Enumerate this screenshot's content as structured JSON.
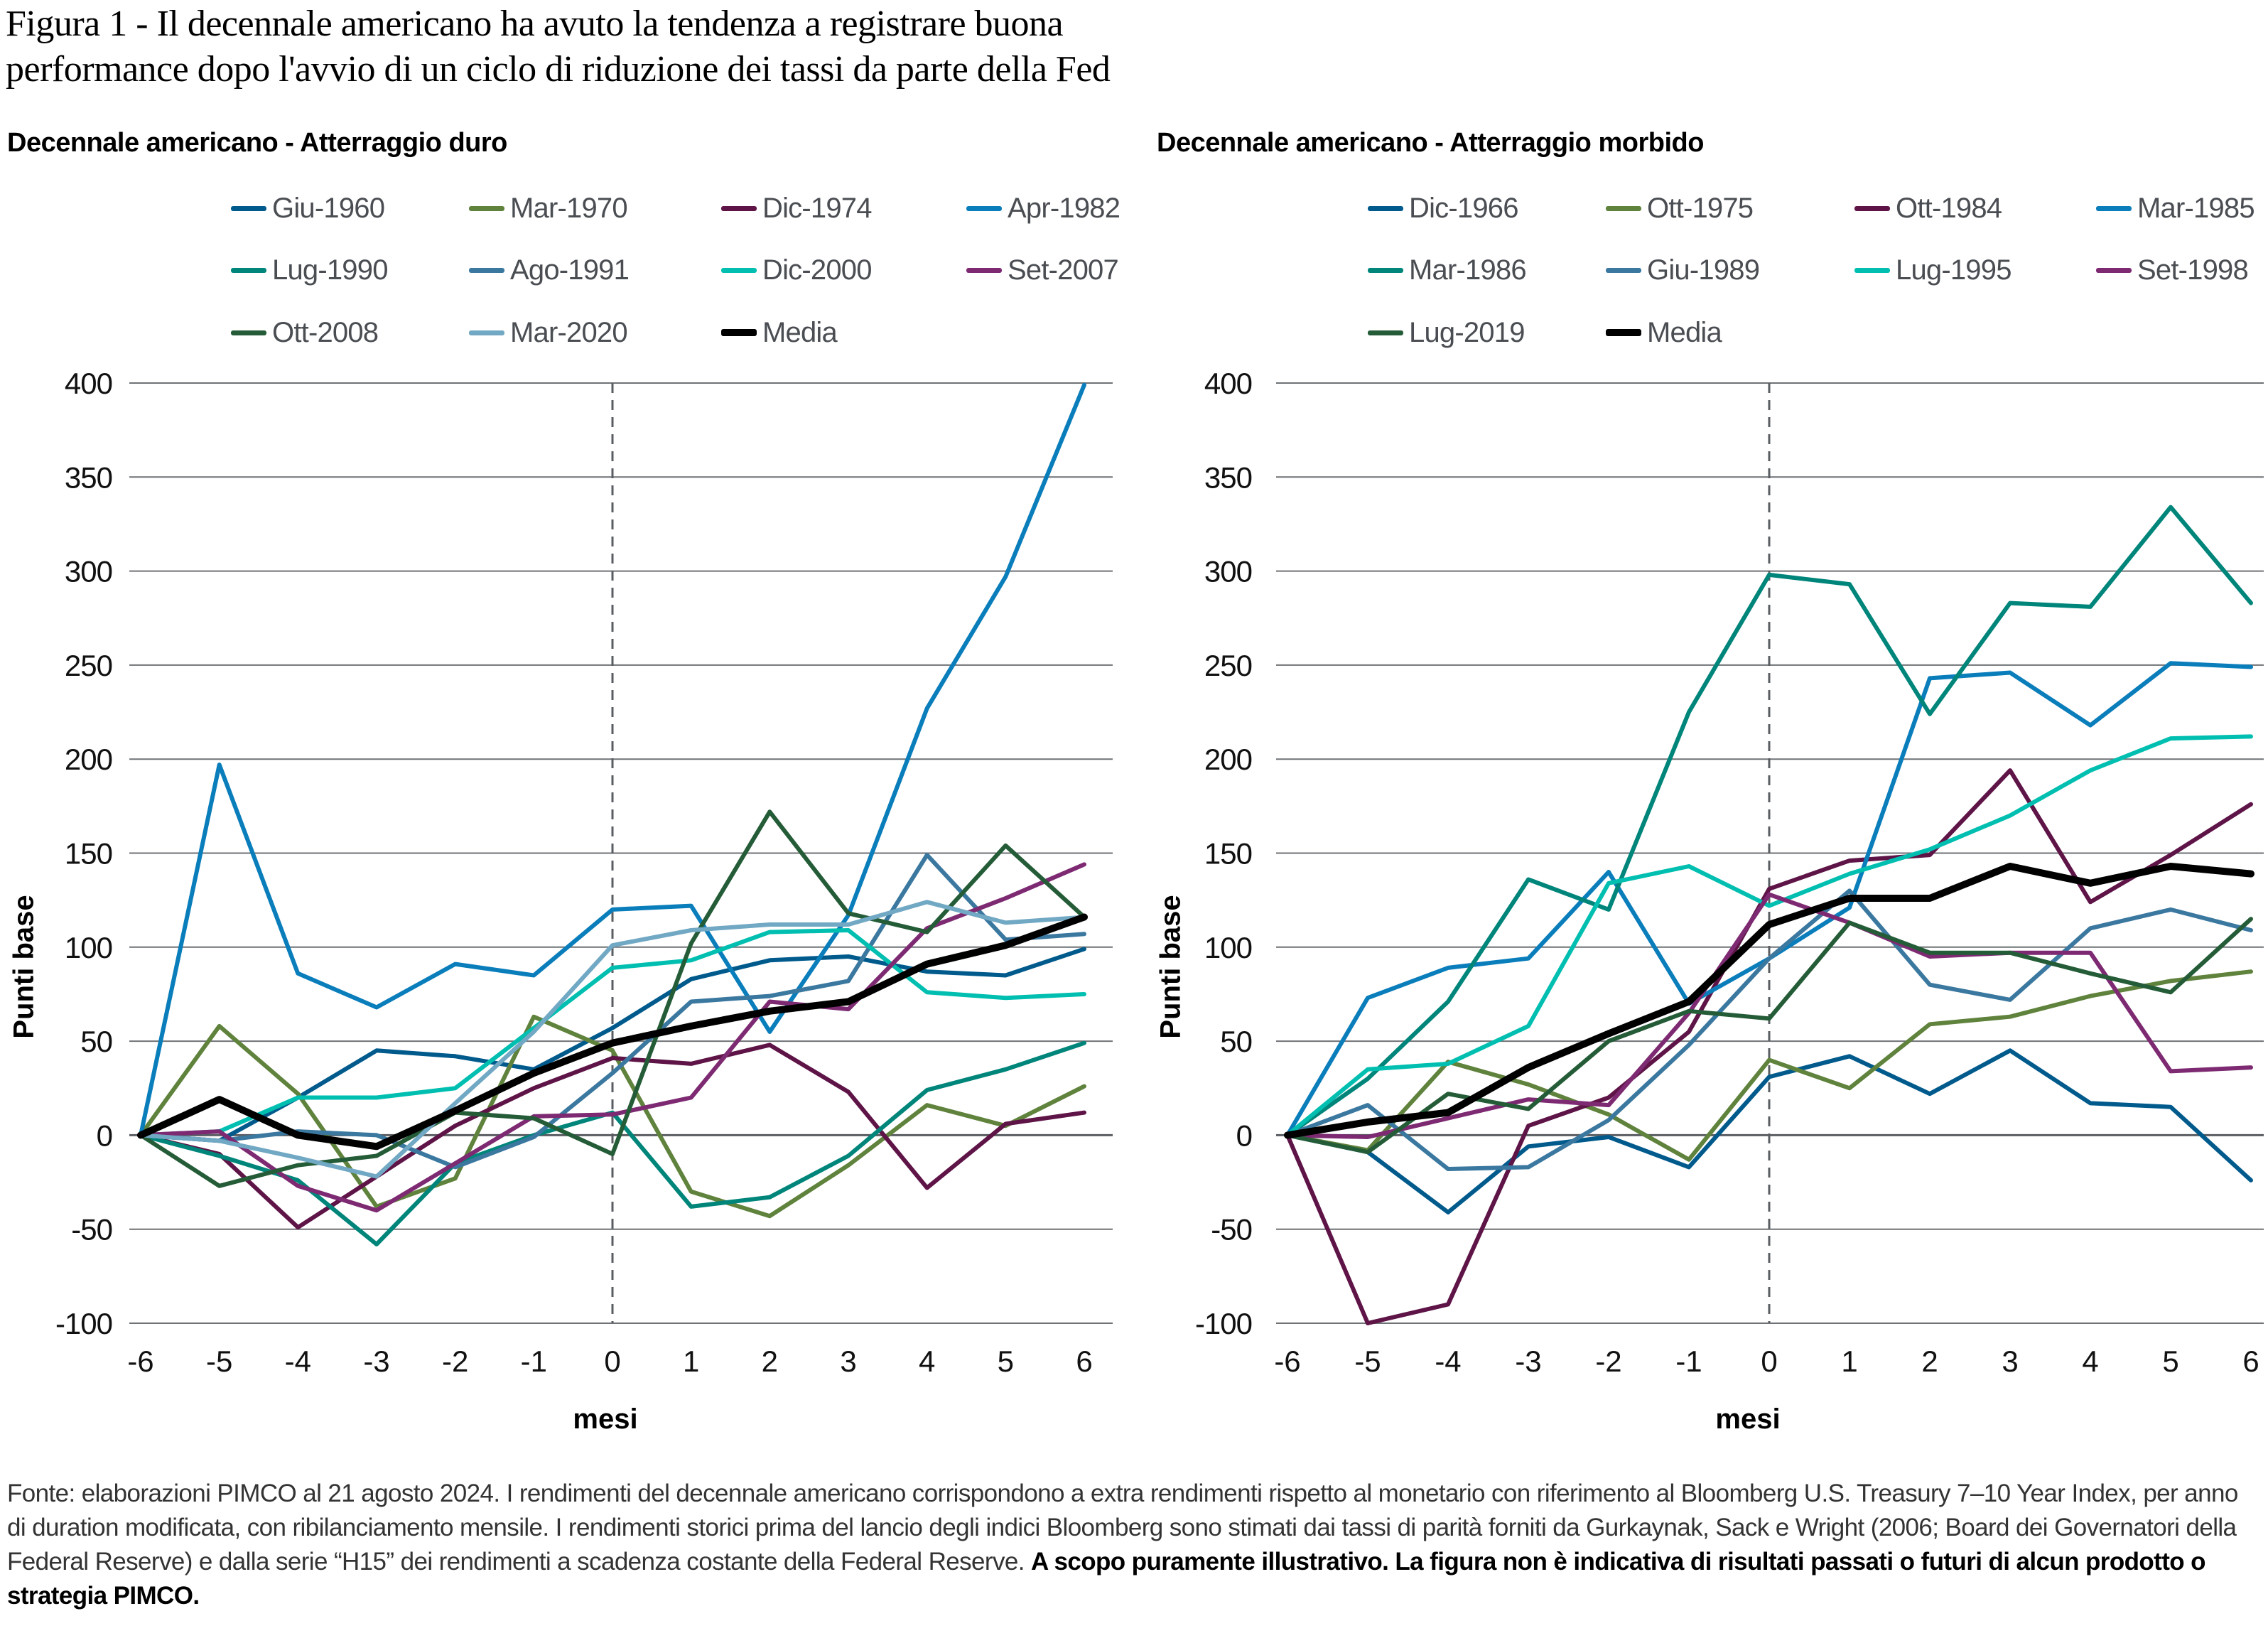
{
  "title_line1": "Figura 1 - Il decennale americano ha avuto la tendenza a registrare buona",
  "title_line2": "performance dopo l'avvio di un ciclo di riduzione dei tassi da parte della Fed",
  "footer": {
    "normal": "Fonte: elaborazioni PIMCO al 21 agosto 2024. I rendimenti del decennale americano corrispondono a extra rendimenti rispetto al monetario con riferimento al Bloomberg U.S. Treasury 7–10 Year Index, per anno di duration modificata, con ribilanciamento mensile. I rendimenti storici prima del lancio degli indici Bloomberg sono stimati dai tassi di parità forniti da Gurkaynak, Sack e Wright (2006; Board dei Governatori della Federal Reserve) e dalla serie “H15” dei rendimenti a scadenza costante della Federal Reserve.",
    "bold": "A scopo puramente illustrativo. La figura non è indicativa di risultati passati o futuri di alcun prodotto o strategia PIMCO."
  },
  "chart_data": [
    {
      "type": "line",
      "title": "Decennale americano - Atterraggio duro",
      "xlabel": "mesi",
      "ylabel": "Punti base",
      "x": [
        -6,
        -5,
        -4,
        -3,
        -2,
        -1,
        0,
        1,
        2,
        3,
        4,
        5,
        6
      ],
      "x_tick_labels": [
        "-6",
        "-5",
        "-4",
        "-3",
        "-2",
        "-1",
        "0",
        "1",
        "2",
        "3",
        "4",
        "5",
        "6"
      ],
      "ylim": [
        -100,
        400
      ],
      "y_ticks": [
        400,
        350,
        300,
        250,
        200,
        150,
        100,
        50,
        0,
        -50,
        -100
      ],
      "y_tick_labels": [
        "400",
        "350",
        "300",
        "250",
        "200",
        "150",
        "100",
        "50",
        "0",
        "-50",
        "-100"
      ],
      "grid": true,
      "vertical_reference_x": 0,
      "legend_position": "top",
      "series": [
        {
          "name": "Giu-1960",
          "color": "#005a8c",
          "width": 3,
          "values": [
            0,
            -3,
            20,
            45,
            42,
            35,
            57,
            83,
            93,
            95,
            87,
            85,
            99
          ]
        },
        {
          "name": "Mar-1970",
          "color": "#5f823c",
          "width": 3,
          "values": [
            0,
            58,
            22,
            -38,
            -23,
            63,
            45,
            -30,
            -43,
            -16,
            16,
            5,
            26
          ]
        },
        {
          "name": "Dic-1974",
          "color": "#5e1447",
          "width": 3,
          "values": [
            0,
            -10,
            -49,
            -22,
            5,
            25,
            41,
            38,
            48,
            23,
            -28,
            6,
            12
          ]
        },
        {
          "name": "Apr-1982",
          "color": "#0a7dbb",
          "width": 3,
          "values": [
            0,
            197,
            86,
            68,
            91,
            85,
            120,
            122,
            55,
            117,
            227,
            297,
            399
          ]
        },
        {
          "name": "Lug-1990",
          "color": "#00857a",
          "width": 3,
          "values": [
            0,
            -11,
            -24,
            -58,
            -15,
            0,
            12,
            -38,
            -33,
            -11,
            24,
            35,
            49
          ]
        },
        {
          "name": "Ago-1991",
          "color": "#3b78a0",
          "width": 3,
          "values": [
            0,
            -3,
            2,
            0,
            -17,
            -1,
            33,
            71,
            74,
            82,
            149,
            104,
            107
          ]
        },
        {
          "name": "Dic-2000",
          "color": "#00bfb0",
          "width": 3,
          "values": [
            0,
            2,
            20,
            20,
            25,
            57,
            89,
            93,
            108,
            109,
            76,
            73,
            75
          ]
        },
        {
          "name": "Set-2007",
          "color": "#7d2a72",
          "width": 3,
          "values": [
            0,
            2,
            -27,
            -40,
            -15,
            10,
            11,
            20,
            71,
            67,
            110,
            126,
            144
          ]
        },
        {
          "name": "Ott-2008",
          "color": "#255c38",
          "width": 3,
          "values": [
            0,
            -27,
            -16,
            -11,
            12,
            9,
            -10,
            102,
            172,
            118,
            108,
            154,
            116
          ]
        },
        {
          "name": "Mar-2020",
          "color": "#71a8c4",
          "width": 3,
          "values": [
            0,
            -3,
            -12,
            -22,
            17,
            55,
            101,
            109,
            112,
            112,
            124,
            113,
            116
          ]
        },
        {
          "name": "Media",
          "color": "#000000",
          "width": 5,
          "values": [
            0,
            19,
            0,
            -6,
            13,
            33,
            49,
            58,
            66,
            71,
            91,
            101,
            116
          ]
        }
      ]
    },
    {
      "type": "line",
      "title": "Decennale americano - Atterraggio morbido",
      "xlabel": "mesi",
      "ylabel": "Punti base",
      "x": [
        -6,
        -5,
        -4,
        -3,
        -2,
        -1,
        0,
        1,
        2,
        3,
        4,
        5,
        6
      ],
      "x_tick_labels": [
        "-6",
        "-5",
        "-4",
        "-3",
        "-2",
        "-1",
        "0",
        "1",
        "2",
        "3",
        "4",
        "5",
        "6"
      ],
      "ylim": [
        -100,
        400
      ],
      "y_ticks": [
        400,
        350,
        300,
        250,
        200,
        150,
        100,
        50,
        0,
        -50,
        -100
      ],
      "y_tick_labels": [
        "400",
        "350",
        "300",
        "250",
        "200",
        "150",
        "100",
        "50",
        "0",
        "-50",
        "-100"
      ],
      "grid": true,
      "vertical_reference_x": 0,
      "legend_position": "top",
      "series": [
        {
          "name": "Dic-1966",
          "color": "#005a8c",
          "width": 3,
          "values": [
            0,
            -9,
            -41,
            -6,
            -1,
            -17,
            31,
            42,
            22,
            45,
            17,
            15,
            -24
          ]
        },
        {
          "name": "Ott-1975",
          "color": "#5f823c",
          "width": 3,
          "values": [
            0,
            -8,
            39,
            27,
            11,
            -13,
            40,
            25,
            59,
            63,
            74,
            82,
            87
          ]
        },
        {
          "name": "Ott-1984",
          "color": "#5e1447",
          "width": 3,
          "values": [
            0,
            -100,
            -90,
            5,
            20,
            55,
            131,
            146,
            149,
            194,
            124,
            149,
            176
          ]
        },
        {
          "name": "Mar-1985",
          "color": "#0a7dbb",
          "width": 3,
          "values": [
            0,
            73,
            89,
            94,
            140,
            70,
            94,
            121,
            243,
            246,
            218,
            251,
            249
          ]
        },
        {
          "name": "Mar-1986",
          "color": "#00857a",
          "width": 3,
          "values": [
            0,
            30,
            71,
            136,
            120,
            225,
            298,
            293,
            224,
            283,
            281,
            334,
            283
          ]
        },
        {
          "name": "Giu-1989",
          "color": "#3b78a0",
          "width": 3,
          "values": [
            0,
            16,
            -18,
            -17,
            8,
            48,
            94,
            130,
            80,
            72,
            110,
            120,
            109
          ]
        },
        {
          "name": "Lug-1995",
          "color": "#00bfb0",
          "width": 3,
          "values": [
            0,
            35,
            38,
            58,
            134,
            143,
            122,
            139,
            152,
            170,
            194,
            211,
            212
          ]
        },
        {
          "name": "Set-1998",
          "color": "#7d2a72",
          "width": 3,
          "values": [
            0,
            -1,
            9,
            19,
            16,
            65,
            128,
            113,
            95,
            97,
            97,
            34,
            36
          ]
        },
        {
          "name": "Lug-2019",
          "color": "#255c38",
          "width": 3,
          "values": [
            0,
            -9,
            22,
            14,
            50,
            66,
            62,
            113,
            97,
            97,
            86,
            76,
            115
          ]
        },
        {
          "name": "Media",
          "color": "#000000",
          "width": 5,
          "values": [
            0,
            7,
            12,
            36,
            54,
            71,
            112,
            126,
            126,
            143,
            134,
            143,
            139
          ]
        }
      ]
    }
  ]
}
